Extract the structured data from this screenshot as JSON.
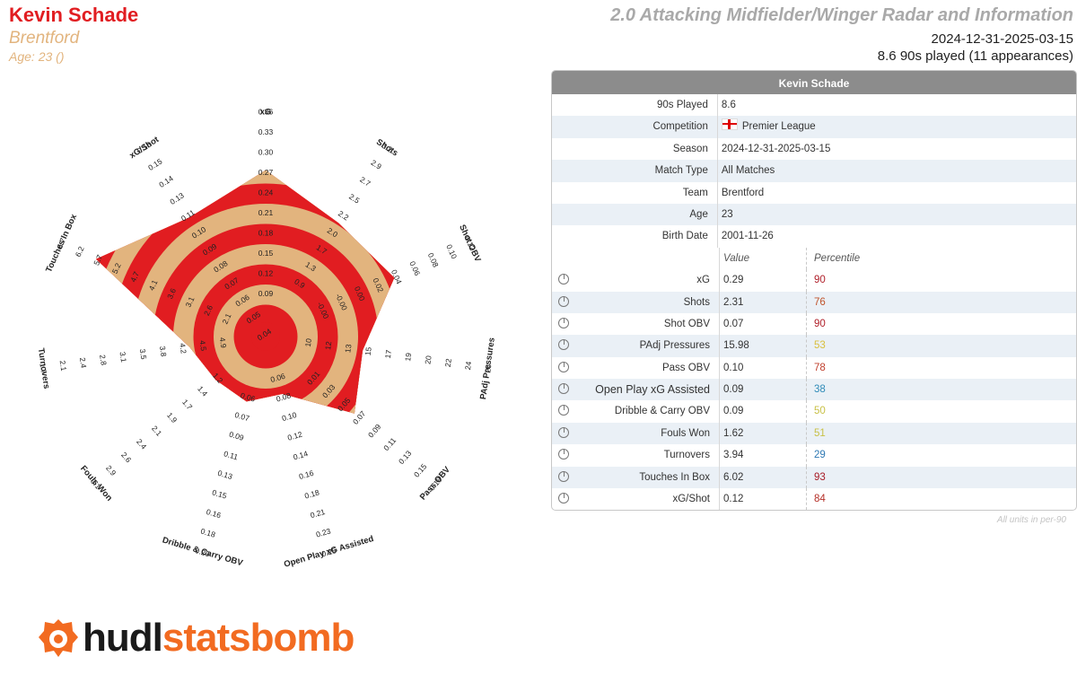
{
  "header": {
    "player_name": "Kevin Schade",
    "team": "Brentford",
    "age_line": "Age: 23 ()",
    "report_title": "2.0 Attacking Midfielder/Winger Radar and Information",
    "date_range": "2024-12-31-2025-03-15",
    "apps_line": "8.6 90s played (11 appearances)"
  },
  "colors": {
    "accent_red": "#e11d21",
    "tan": "#e2b47e",
    "ring_grey": "#e3e2e2",
    "percentile_high": "#b0202a",
    "percentile_mid": "#d6a531",
    "percentile_low": "#2f79b4"
  },
  "chart_data": {
    "type": "radar",
    "metrics": [
      {
        "name": "xG",
        "ticks": [
          "0.09",
          "0.12",
          "0.15",
          "0.18",
          "0.21",
          "0.24",
          "0.27",
          "0.30",
          "0.33",
          "0.36"
        ],
        "range": [
          0.06,
          0.36
        ],
        "value": 0.29
      },
      {
        "name": "Shots",
        "ticks": [
          "0.9",
          "1.3",
          "1.7",
          "2.0",
          "2.2",
          "2.5",
          "2.7",
          "2.9",
          "3.2"
        ],
        "range": [
          0.6,
          3.4
        ],
        "value": 2.31
      },
      {
        "name": "Shot OBV",
        "ticks": [
          "-0.00",
          "-0.00",
          "0.00",
          "0.02",
          "0.04",
          "0.06",
          "0.08",
          "0.10",
          "0.12"
        ],
        "range": [
          -0.02,
          0.12
        ],
        "value": 0.07
      },
      {
        "name": "PAdj Pressures",
        "ticks": [
          "10",
          "12",
          "13",
          "15",
          "17",
          "19",
          "20",
          "22",
          "24",
          "26"
        ],
        "range": [
          8.5,
          26
        ],
        "value": 15.98
      },
      {
        "name": "Pass OBV",
        "ticks": [
          "0.01",
          "0.03",
          "0.05",
          "0.07",
          "0.09",
          "0.11",
          "0.13",
          "0.15",
          "0.18"
        ],
        "range": [
          -0.01,
          0.2
        ],
        "value": 0.1
      },
      {
        "name": "Open Play xG Assisted",
        "ticks": [
          "0.06",
          "0.08",
          "0.10",
          "0.12",
          "0.14",
          "0.16",
          "0.18",
          "0.21",
          "0.23",
          "0.25"
        ],
        "range": [
          0.04,
          0.25
        ],
        "value": 0.09
      },
      {
        "name": "Dribble & Carry OBV",
        "ticks": [
          "0.06",
          "0.07",
          "0.09",
          "0.11",
          "0.13",
          "0.15",
          "0.16",
          "0.18",
          "0.20"
        ],
        "range": [
          0.04,
          0.22
        ],
        "value": 0.09
      },
      {
        "name": "Fouls Won",
        "ticks": [
          "1.2",
          "1.4",
          "1.7",
          "1.9",
          "2.1",
          "2.4",
          "2.6",
          "2.9",
          "3.1"
        ],
        "range": [
          1.0,
          3.3
        ],
        "value": 1.62
      },
      {
        "name": "Turnovers",
        "ticks": [
          "4.9",
          "4.5",
          "4.2",
          "3.8",
          "3.5",
          "3.1",
          "2.8",
          "2.4",
          "2.1",
          "1.7"
        ],
        "range": [
          5.0,
          1.7
        ],
        "value": 3.94
      },
      {
        "name": "Touches In Box",
        "ticks": [
          "2.1",
          "2.6",
          "3.1",
          "3.6",
          "4.1",
          "4.7",
          "5.2",
          "5.7",
          "6.2",
          "6.7"
        ],
        "range": [
          1.6,
          6.7
        ],
        "value": 6.02
      },
      {
        "name": "xG/Shot",
        "ticks": [
          "0.04",
          "0.05",
          "0.06",
          "0.07",
          "0.08",
          "0.09",
          "0.10",
          "0.11",
          "0.13",
          "0.14",
          "0.15",
          "0.16"
        ],
        "range": [
          0.03,
          0.17
        ],
        "value": 0.12
      }
    ]
  },
  "info_table": {
    "title": "Kevin Schade",
    "info_rows": [
      {
        "label": "90s Played",
        "value": "8.6"
      },
      {
        "label": "Competition",
        "value": "Premier League"
      },
      {
        "label": "Season",
        "value": "2024-12-31-2025-03-15"
      },
      {
        "label": "Match Type",
        "value": "All Matches"
      },
      {
        "label": "Team",
        "value": "Brentford"
      },
      {
        "label": "Age",
        "value": "23"
      },
      {
        "label": "Birth Date",
        "value": "2001-11-26"
      }
    ],
    "value_header": "Value",
    "percentile_header": "Percentile",
    "stat_rows": [
      {
        "label": "xG",
        "value": "0.29",
        "percentile": "90",
        "color": "#b0202a"
      },
      {
        "label": "Shots",
        "value": "2.31",
        "percentile": "76",
        "color": "#c0542c"
      },
      {
        "label": "Shot OBV",
        "value": "0.07",
        "percentile": "90",
        "color": "#b0202a"
      },
      {
        "label": "PAdj Pressures",
        "value": "15.98",
        "percentile": "53",
        "color": "#d9bf3c"
      },
      {
        "label": "Pass OBV",
        "value": "0.10",
        "percentile": "78",
        "color": "#c0402e"
      },
      {
        "label": "Open Play xG Assisted",
        "value": "0.09",
        "percentile": "38",
        "color": "#2f8bb8"
      },
      {
        "label": "Dribble & Carry OBV",
        "value": "0.09",
        "percentile": "50",
        "color": "#c8c046"
      },
      {
        "label": "Fouls Won",
        "value": "1.62",
        "percentile": "51",
        "color": "#c8c046"
      },
      {
        "label": "Turnovers",
        "value": "3.94",
        "percentile": "29",
        "color": "#2f79b4"
      },
      {
        "label": "Touches In Box",
        "value": "6.02",
        "percentile": "93",
        "color": "#a81c26"
      },
      {
        "label": "xG/Shot",
        "value": "0.12",
        "percentile": "84",
        "color": "#b53028"
      }
    ],
    "units_note": "All units in per-90"
  },
  "logo": {
    "part1": "hudl",
    "part2": "statsbomb"
  }
}
